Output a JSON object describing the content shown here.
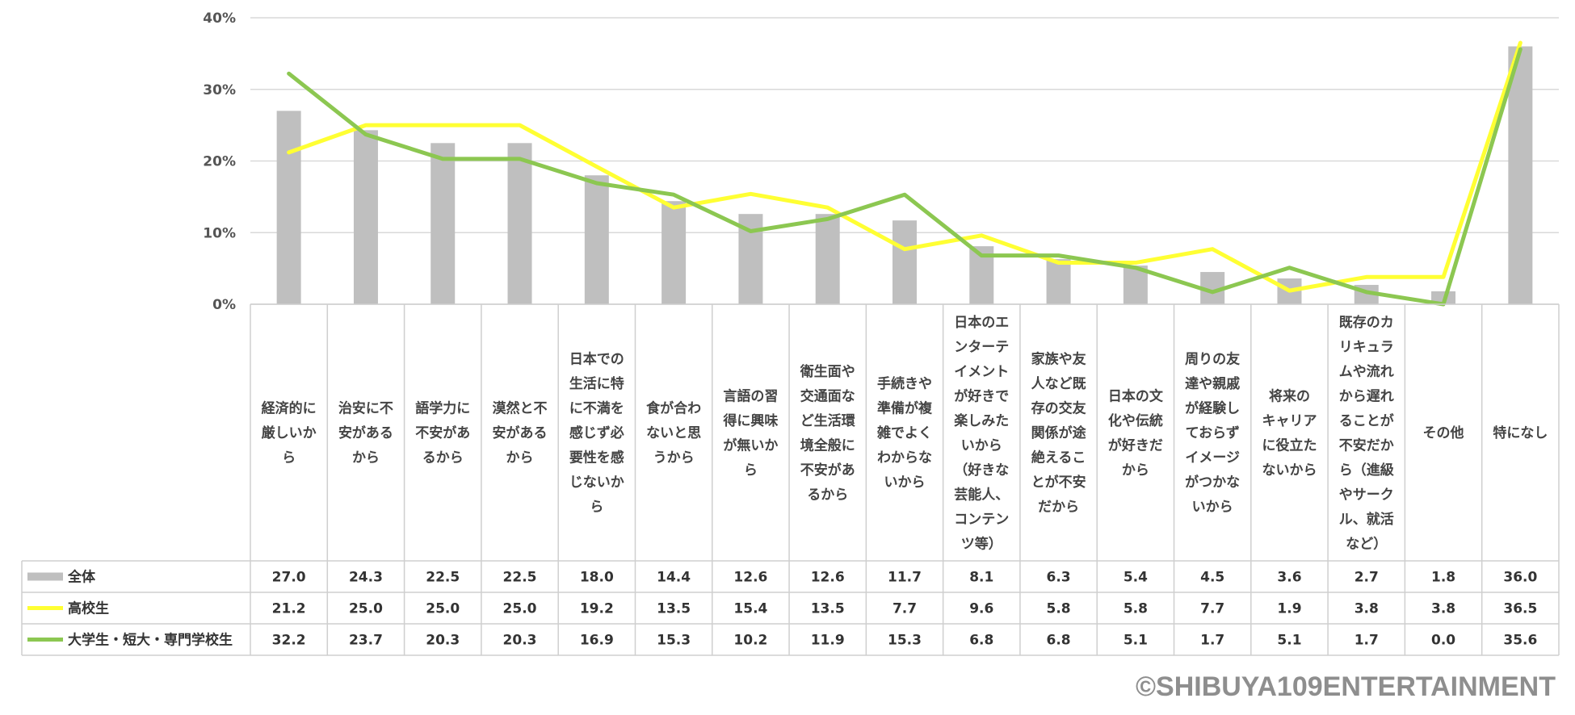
{
  "chart_data": {
    "type": "bar",
    "ylim": [
      0,
      40
    ],
    "yticks": [
      "0%",
      "10%",
      "20%",
      "30%",
      "40%"
    ],
    "yticks_values": [
      0,
      10,
      20,
      30,
      40
    ],
    "categories": [
      [
        "経済的に",
        "厳しいか",
        "ら"
      ],
      [
        "治安に不",
        "安がある",
        "から"
      ],
      [
        "語学力に",
        "不安があ",
        "るから"
      ],
      [
        "漠然と不",
        "安がある",
        "から"
      ],
      [
        "日本での",
        "生活に特",
        "に不満を",
        "感じず必",
        "要性を感",
        "じないか",
        "ら"
      ],
      [
        "食が合わ",
        "ないと思",
        "うから"
      ],
      [
        "言語の習",
        "得に興味",
        "が無いか",
        "ら"
      ],
      [
        "衛生面や",
        "交通面な",
        "ど生活環",
        "境全般に",
        "不安があ",
        "るから"
      ],
      [
        "手続きや",
        "準備が複",
        "雑でよく",
        "わからな",
        "いから"
      ],
      [
        "日本のエ",
        "ンターテ",
        "イメント",
        "が好きで",
        "楽しみた",
        "いから",
        "（好きな",
        "芸能人、",
        "コンテン",
        "ツ等）"
      ],
      [
        "家族や友",
        "人など既",
        "存の交友",
        "関係が途",
        "絶えるこ",
        "とが不安",
        "だから"
      ],
      [
        "日本の文",
        "化や伝統",
        "が好きだ",
        "から"
      ],
      [
        "周りの友",
        "達や親戚",
        "が経験し",
        "ておらず",
        "イメージ",
        "がつかな",
        "いから"
      ],
      [
        "将来の",
        "キャリア",
        "に役立た",
        "ないから"
      ],
      [
        "既存のカ",
        "リキュラ",
        "ムや流れ",
        "から遅れ",
        "ることが",
        "不安だか",
        "ら（進級",
        "やサーク",
        "ル、就活",
        "など）"
      ],
      [
        "その他"
      ],
      [
        "特になし"
      ]
    ],
    "series": [
      {
        "name": "全体",
        "type": "bar",
        "color": "#bfbfbf",
        "values": [
          27.0,
          24.3,
          22.5,
          22.5,
          18.0,
          14.4,
          12.6,
          12.6,
          11.7,
          8.1,
          6.3,
          5.4,
          4.5,
          3.6,
          2.7,
          1.8,
          36.0
        ],
        "labels": [
          "27.0",
          "24.3",
          "22.5",
          "22.5",
          "18.0",
          "14.4",
          "12.6",
          "12.6",
          "11.7",
          "8.1",
          "6.3",
          "5.4",
          "4.5",
          "3.6",
          "2.7",
          "1.8",
          "36.0"
        ]
      },
      {
        "name": "高校生",
        "type": "line",
        "color": "#ffff33",
        "values": [
          21.2,
          25.0,
          25.0,
          25.0,
          19.2,
          13.5,
          15.4,
          13.5,
          7.7,
          9.6,
          5.8,
          5.8,
          7.7,
          1.9,
          3.8,
          3.8,
          36.5
        ],
        "labels": [
          "21.2",
          "25.0",
          "25.0",
          "25.0",
          "19.2",
          "13.5",
          "15.4",
          "13.5",
          "7.7",
          "9.6",
          "5.8",
          "5.8",
          "7.7",
          "1.9",
          "3.8",
          "3.8",
          "36.5"
        ]
      },
      {
        "name": "大学生・短大・専門学校生",
        "type": "line",
        "color": "#8cc751",
        "values": [
          32.2,
          23.7,
          20.3,
          20.3,
          16.9,
          15.3,
          10.2,
          11.9,
          15.3,
          6.8,
          6.8,
          5.1,
          1.7,
          5.1,
          1.7,
          0.0,
          35.6
        ],
        "labels": [
          "32.2",
          "23.7",
          "20.3",
          "20.3",
          "16.9",
          "15.3",
          "10.2",
          "11.9",
          "15.3",
          "6.8",
          "6.8",
          "5.1",
          "1.7",
          "5.1",
          "1.7",
          "0.0",
          "35.6"
        ]
      }
    ]
  },
  "footer": {
    "copyright": "©SHIBUYA109ENTERTAINMENT"
  },
  "colors": {
    "grid": "#d9d9d9",
    "table_border": "#cfcfcf"
  }
}
